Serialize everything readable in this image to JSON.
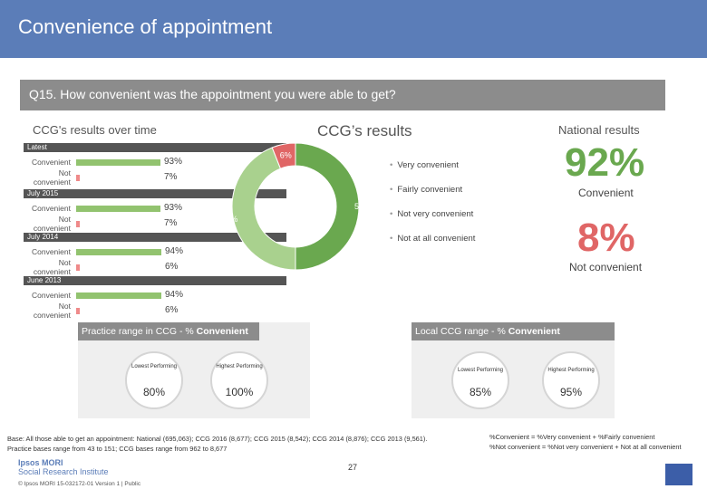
{
  "header": {
    "title": "Convenience of appointment"
  },
  "question": "Q15. How convenient was the appointment you were able to get?",
  "sections": {
    "over_time": "CCG's results over time",
    "ccg": "CCG’s results",
    "national": "National results"
  },
  "over_time": [
    {
      "period": "Latest",
      "convenient_label": "Convenient",
      "not_label": "Not convenient",
      "convenient": 93,
      "not": 7,
      "convenient_text": "93%",
      "not_text": "7%"
    },
    {
      "period": "July 2015",
      "convenient_label": "Convenient",
      "not_label": "Not convenient",
      "convenient": 93,
      "not": 7,
      "convenient_text": "93%",
      "not_text": "7%"
    },
    {
      "period": "July 2014",
      "convenient_label": "Convenient",
      "not_label": "Not convenient",
      "convenient": 94,
      "not": 6,
      "convenient_text": "94%",
      "not_text": "6%"
    },
    {
      "period": "June 2013",
      "convenient_label": "Convenient",
      "not_label": "Not convenient",
      "convenient": 94,
      "not": 6,
      "convenient_text": "94%",
      "not_text": "6%"
    }
  ],
  "chart_data": {
    "type": "pie",
    "title": "CCG’s results",
    "slices": [
      {
        "label": "Very convenient",
        "value": 50,
        "text": "50%",
        "color": "#6aa84f"
      },
      {
        "label": "Fairly convenient",
        "value": 44,
        "text": "44%",
        "color": "#a9d18e"
      },
      {
        "label": "Not very convenient",
        "value": 6,
        "text": "6%",
        "color": "#e06666"
      },
      {
        "label": "Not at all convenient",
        "value": 0,
        "text": "",
        "color": "#990000"
      }
    ]
  },
  "national": {
    "convenient_value": "92%",
    "convenient_label": "Convenient",
    "not_value": "8%",
    "not_label": "Not convenient",
    "convenient_color": "#6aa84f",
    "not_color": "#e06666"
  },
  "practice_range": {
    "title_prefix": "Practice range in CCG - % ",
    "title_bold": "Convenient",
    "lowest_label": "Lowest Performing",
    "highest_label": "Highest Performing",
    "lowest": "80%",
    "highest": "100%"
  },
  "local_range": {
    "title_prefix": "Local CCG range - % ",
    "title_bold": "Convenient",
    "lowest_label": "Lowest Performing",
    "highest_label": "Highest Performing",
    "lowest": "85%",
    "highest": "95%"
  },
  "footnotes": {
    "base_1": "Base: All those able to get an appointment: National (695,063); CCG 2016 (8,677); CCG 2015 (8,542); CCG 2014 (8,876); CCG 2013 (9,561).",
    "base_2": "Practice bases range from 43 to 151; CCG bases range from 962 to 8,677",
    "def_1": "%Convenient = %Very convenient + %Fairly convenient",
    "def_2": "%Not convenient = %Not very convenient + Not at all convenient"
  },
  "page_number": "27",
  "logo": {
    "line1": "Ipsos MORI",
    "line2": "Social Research Institute"
  },
  "copyright": "© Ipsos MORI    15-032172-01 Version 1 | Public"
}
